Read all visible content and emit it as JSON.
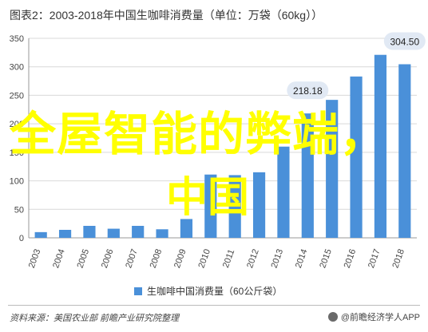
{
  "title": "图表2：2003-2018年中国生咖啡消费量（单位：万袋（60kg））",
  "chart_data": {
    "type": "bar",
    "categories": [
      "2003",
      "2004",
      "2005",
      "2006",
      "2007",
      "2008",
      "2009",
      "2010",
      "2011",
      "2012",
      "2013",
      "2014",
      "2015",
      "2016",
      "2017",
      "2018"
    ],
    "series": [
      {
        "name": "生咖啡中国消费量（60公斤袋）",
        "values": [
          10,
          14,
          21,
          16,
          21,
          15,
          33,
          111,
          110,
          115,
          160,
          218.18,
          242,
          283,
          321,
          304.5
        ]
      }
    ],
    "ylim": [
      0,
      350
    ],
    "yticks": [
      0,
      50,
      100,
      150,
      200,
      250,
      300,
      350
    ],
    "grid": true,
    "legend_position": "bottom",
    "color": "#4a90d9",
    "annotations": [
      {
        "category": "2014",
        "text": "218.18"
      },
      {
        "category": "2018",
        "text": "304.50"
      }
    ]
  },
  "overlay": {
    "headline": "全屋智能的弊端，",
    "sub": "中国"
  },
  "footer": {
    "source": "资料来源：美国农业部 前瞻产业研究院整理",
    "brand": "@前瞻经济学人APP"
  }
}
